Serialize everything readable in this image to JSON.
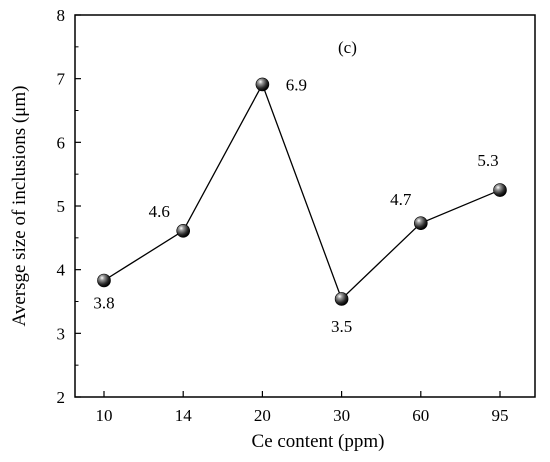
{
  "chart_data": {
    "type": "line",
    "panel_label": "(c)",
    "xlabel": "Ce content (ppm)",
    "ylabel": "Aversge size of inclusions (μm)",
    "categories": [
      "10",
      "14",
      "20",
      "30",
      "60",
      "95"
    ],
    "series": [
      {
        "values": [
          3.83,
          4.61,
          6.91,
          3.54,
          4.73,
          5.25
        ],
        "labels": [
          "3.8",
          "4.6",
          "6.9",
          "3.5",
          "4.7",
          "5.3"
        ],
        "color": "#000000"
      }
    ],
    "yticks": [
      "2",
      "3",
      "4",
      "5",
      "6",
      "7",
      "8"
    ],
    "ylim": [
      2,
      8
    ],
    "grid": false,
    "marker": "sphere"
  }
}
